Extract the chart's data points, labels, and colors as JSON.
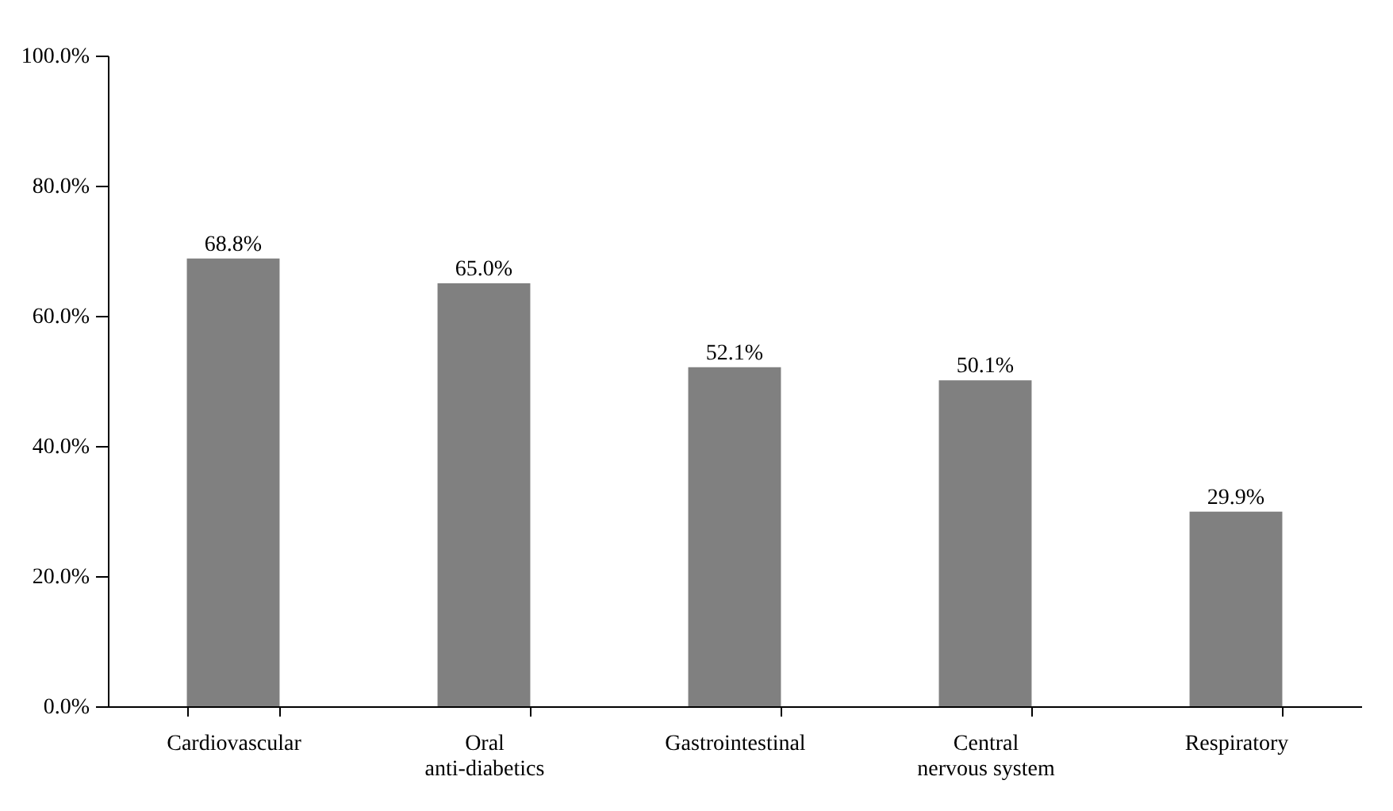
{
  "chart_data": {
    "type": "bar",
    "categories": [
      "Cardiovascular",
      "Oral anti-diabetics",
      "Gastrointestinal",
      "Central nervous system",
      "Respiratory"
    ],
    "values": [
      68.8,
      65.0,
      52.1,
      50.1,
      29.9
    ],
    "value_labels": [
      "68.8%",
      "65.0%",
      "52.1%",
      "50.1%",
      "29.9%"
    ],
    "color": "#808080",
    "ylim": [
      0,
      100
    ],
    "yticks": [
      {
        "value": 0,
        "label": "0.0%"
      },
      {
        "value": 20,
        "label": "20.0%"
      },
      {
        "value": 40,
        "label": "40.0%"
      },
      {
        "value": 60,
        "label": "60.0%"
      },
      {
        "value": 80,
        "label": "80.0%"
      },
      {
        "value": 100,
        "label": "100.0%"
      }
    ],
    "grid": false
  }
}
